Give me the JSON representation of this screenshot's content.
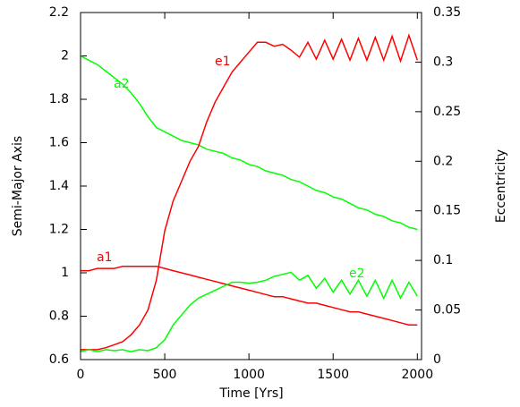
{
  "chart_data": {
    "type": "line",
    "x_label": "Time [Yrs]",
    "y_label": "Semi-Major Axis",
    "y2_label": "Eccentricity",
    "x": [
      0,
      50,
      100,
      150,
      200,
      250,
      300,
      350,
      400,
      450,
      500,
      550,
      600,
      650,
      700,
      750,
      800,
      850,
      900,
      950,
      1000,
      1050,
      1100,
      1150,
      1200,
      1250,
      1300,
      1350,
      1400,
      1450,
      1500,
      1550,
      1600,
      1650,
      1700,
      1750,
      1800,
      1850,
      1900,
      1950,
      2000
    ],
    "series": [
      {
        "name": "a1",
        "color": "#ff0000",
        "axis": "y",
        "values": [
          1.01,
          1.01,
          1.02,
          1.02,
          1.02,
          1.03,
          1.03,
          1.03,
          1.03,
          1.03,
          1.02,
          1.01,
          1.0,
          0.99,
          0.98,
          0.97,
          0.96,
          0.95,
          0.94,
          0.93,
          0.92,
          0.91,
          0.9,
          0.89,
          0.89,
          0.88,
          0.87,
          0.86,
          0.86,
          0.85,
          0.84,
          0.83,
          0.82,
          0.82,
          0.81,
          0.8,
          0.79,
          0.78,
          0.77,
          0.76,
          0.76
        ]
      },
      {
        "name": "a2",
        "color": "#00ff00",
        "axis": "y",
        "values": [
          2.0,
          1.98,
          1.96,
          1.93,
          1.9,
          1.87,
          1.83,
          1.78,
          1.72,
          1.67,
          1.65,
          1.63,
          1.61,
          1.6,
          1.59,
          1.57,
          1.56,
          1.55,
          1.53,
          1.52,
          1.5,
          1.49,
          1.47,
          1.46,
          1.45,
          1.43,
          1.42,
          1.4,
          1.38,
          1.37,
          1.35,
          1.34,
          1.32,
          1.3,
          1.29,
          1.27,
          1.26,
          1.24,
          1.23,
          1.21,
          1.2
        ]
      },
      {
        "name": "e1",
        "color": "#ff0000",
        "axis": "y2",
        "values": [
          0.01,
          0.01,
          0.01,
          0.012,
          0.015,
          0.018,
          0.025,
          0.035,
          0.05,
          0.08,
          0.13,
          0.16,
          0.18,
          0.2,
          0.215,
          0.24,
          0.26,
          0.275,
          0.29,
          0.3,
          0.31,
          0.32,
          0.32,
          0.316,
          0.318,
          0.312,
          0.305,
          0.32,
          0.303,
          0.322,
          0.303,
          0.323,
          0.302,
          0.324,
          0.302,
          0.325,
          0.302,
          0.326,
          0.301,
          0.327,
          0.302
        ]
      },
      {
        "name": "e2",
        "color": "#00ff00",
        "axis": "y2",
        "values": [
          0.008,
          0.01,
          0.008,
          0.01,
          0.009,
          0.01,
          0.008,
          0.01,
          0.009,
          0.012,
          0.02,
          0.035,
          0.045,
          0.055,
          0.062,
          0.066,
          0.07,
          0.074,
          0.078,
          0.078,
          0.077,
          0.078,
          0.08,
          0.084,
          0.086,
          0.088,
          0.08,
          0.085,
          0.072,
          0.082,
          0.068,
          0.08,
          0.066,
          0.08,
          0.064,
          0.08,
          0.062,
          0.08,
          0.062,
          0.078,
          0.064
        ]
      }
    ],
    "xlim": [
      0,
      2025
    ],
    "xticks": [
      0,
      500,
      1000,
      1500,
      2000
    ],
    "ylim": [
      0.6,
      2.2
    ],
    "yticks": [
      0.6,
      0.8,
      1,
      1.2,
      1.4,
      1.6,
      1.8,
      2,
      2.2
    ],
    "y2lim": [
      0,
      0.35
    ],
    "y2ticks": [
      0,
      0.05,
      0.1,
      0.15,
      0.2,
      0.25,
      0.3,
      0.35
    ]
  }
}
